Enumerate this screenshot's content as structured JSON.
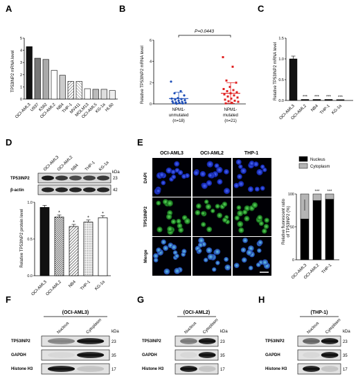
{
  "panels": {
    "A": {
      "letter": "A",
      "chart_data": {
        "type": "bar",
        "ylabel": "TP53INP2 mRNA level",
        "ylim": [
          0,
          5
        ],
        "yticks": [
          "0",
          "1",
          "2",
          "3",
          "4",
          "5"
        ],
        "categories": [
          "OCI-AML3",
          "U937",
          "K562",
          "OCI-AML2",
          "NB4",
          "THP-1",
          "MV411",
          "MOLM13",
          "OCI-AML5",
          "KG-1a",
          "HL60"
        ],
        "values": [
          4.3,
          3.35,
          3.25,
          2.35,
          1.95,
          1.45,
          1.45,
          0.85,
          0.8,
          0.8,
          0.7
        ],
        "fills": [
          "#111111",
          "#777777",
          "#aaaaaa",
          "#ffffff",
          "#cccccc",
          "hatch",
          "hatch2",
          "#ffffff",
          "#bbbbbb",
          "#dddddd",
          "#eeeeee"
        ]
      }
    },
    "B": {
      "letter": "B",
      "chart_data": {
        "type": "scatter",
        "ylabel": "Relative TP53INP2 mRNA level",
        "ylim": [
          0,
          6
        ],
        "yticks": [
          "0",
          "2",
          "4",
          "6"
        ],
        "pvalue": "P=0.0443",
        "groups": [
          {
            "label1": "NPM1-",
            "label2": "unmutated",
            "label3": "(n=18)",
            "color": "#1f4fb8",
            "mean": 0.5,
            "sd_lo": 0.05,
            "sd_hi": 1.1,
            "values": [
              2.1,
              1.2,
              1.0,
              0.8,
              0.55,
              0.5,
              0.45,
              0.4,
              0.35,
              0.3,
              0.25,
              0.2,
              0.15,
              0.12,
              0.1,
              0.08,
              0.05,
              0.02
            ]
          },
          {
            "label1": "NPM1-",
            "label2": "mutated",
            "label3": "(n=21)",
            "color": "#e02020",
            "mean": 1.0,
            "sd_lo": 0.05,
            "sd_hi": 2.0,
            "values": [
              4.4,
              3.5,
              2.2,
              2.0,
              1.6,
              1.4,
              1.3,
              1.2,
              1.1,
              1.0,
              0.9,
              0.8,
              0.7,
              0.6,
              0.5,
              0.4,
              0.3,
              0.25,
              0.2,
              0.1,
              0.05
            ]
          }
        ]
      }
    },
    "C": {
      "letter": "C",
      "chart_data": {
        "type": "bar",
        "ylabel": "Relative TP53INP2 mRNA level",
        "ylim": [
          0,
          1.5
        ],
        "yticks": [
          "0.0",
          "0.5",
          "1.0",
          "1.5"
        ],
        "categories": [
          "OCI-AML3",
          "OCI-AML2",
          "NB4",
          "THP-1",
          "KG-1a"
        ],
        "values": [
          1.0,
          0.025,
          0.025,
          0.025,
          0.02
        ],
        "sig": [
          "",
          "***",
          "***",
          "***",
          "***"
        ]
      }
    },
    "D": {
      "letter": "D",
      "lanes": [
        "OCI-AML3",
        "OCI-AML2",
        "NB4",
        "THP-1",
        "KG-1a"
      ],
      "kda_label": "kDa",
      "rows": [
        {
          "name": "TP53INP2",
          "kda": "23"
        },
        {
          "name": "β-actin",
          "kda": "42"
        }
      ],
      "chart_data": {
        "type": "bar",
        "ylabel": "Relative TP53INP2 protein level",
        "ylim": [
          0,
          1.0
        ],
        "yticks": [
          "0.0",
          "0.5",
          "1.0"
        ],
        "categories": [
          "OCI-AML3",
          "OCI-AML2",
          "NB4",
          "THP-1",
          "KG-1a"
        ],
        "values": [
          0.93,
          0.8,
          0.67,
          0.73,
          0.79
        ],
        "sig": [
          "",
          "*",
          "*",
          "*",
          "*"
        ]
      }
    },
    "E": {
      "letter": "E",
      "columns": [
        "OCI-AML3",
        "OCI-AML2",
        "THP-1"
      ],
      "rows": [
        "DAPI",
        "TP53INP2",
        "Merge"
      ],
      "chart_data": {
        "type": "bar",
        "ylabel1": "Relative fluorescent ratio",
        "ylabel2": "of TP53INP2 (%)",
        "ylim": [
          0,
          100
        ],
        "yticks": [
          "0",
          "50",
          "100"
        ],
        "categories": [
          "OCI-AML3",
          "OCI-AML2",
          "THP-1"
        ],
        "series": [
          {
            "name": "Nucleus",
            "values": [
              62,
              90,
              92
            ],
            "color": "#000000"
          },
          {
            "name": "Cytoplasm",
            "values": [
              38,
              10,
              8
            ],
            "color": "#b5b5b5"
          }
        ],
        "sig": [
          "",
          "***",
          "***"
        ]
      }
    },
    "F": {
      "letter": "F",
      "cell": "(OCI-AML3)",
      "lanes": [
        "Nucleus",
        "Cytoplasm"
      ],
      "kda_label": "kDa",
      "rows": [
        {
          "name": "TP53INP2",
          "kda": "23"
        },
        {
          "name": "GAPDH",
          "kda": "35"
        },
        {
          "name": "Histone H3",
          "kda": "17"
        }
      ]
    },
    "G": {
      "letter": "G",
      "cell": "(OCI-AML2)",
      "lanes": [
        "Nucleus",
        "Cytoplasm"
      ],
      "kda_label": "kDa",
      "rows": [
        {
          "name": "TP53INP2",
          "kda": "23"
        },
        {
          "name": "GAPDH",
          "kda": "35"
        },
        {
          "name": "Histone H3",
          "kda": "17"
        }
      ]
    },
    "H": {
      "letter": "H",
      "cell": "(THP-1)",
      "lanes": [
        "Nucleus",
        "Cytoplasm"
      ],
      "kda_label": "kDa",
      "rows": [
        {
          "name": "TP53INP2",
          "kda": "23"
        },
        {
          "name": "GAPDH",
          "kda": "35"
        },
        {
          "name": "Histone H3",
          "kda": "17"
        }
      ]
    }
  }
}
